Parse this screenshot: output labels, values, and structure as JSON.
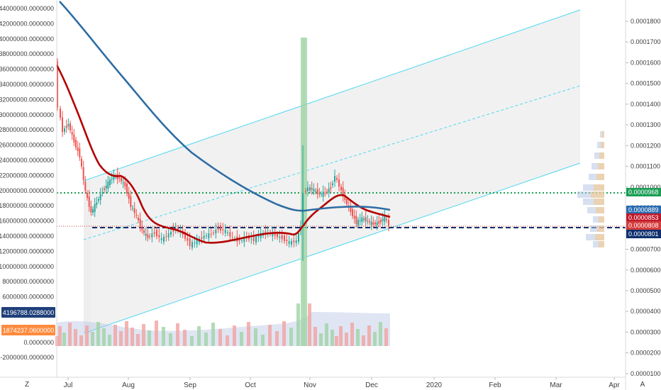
{
  "chart_data": {
    "type": "candlestick",
    "x_axis": {
      "ticks": [
        "Jul",
        "Aug",
        "Sep",
        "Oct",
        "Nov",
        "Dec",
        "2020",
        "Feb",
        "Mar",
        "Apr"
      ]
    },
    "left_axis": {
      "range": [
        -3000000,
        45000000
      ],
      "ticks": [
        "44000000.0000000",
        "42000000.0000000",
        "40000000.0000000",
        "38000000.0000000",
        "36000000.0000000",
        "34000000.0000000",
        "32000000.0000000",
        "30000000.0000000",
        "28000000.0000000",
        "26000000.0000000",
        "24000000.0000000",
        "22000000.0000000",
        "20000000.0000000",
        "18000000.0000000",
        "16000000.0000000",
        "14000000.0000000",
        "12000000.0000000",
        "10000000.0000000",
        "8000000.0000000",
        "6000000.0000000",
        "4000000.0000000",
        "2000000.0000000",
        "0.0000000",
        "-2000000.0000000"
      ],
      "markers": [
        {
          "label": "4196788.0288000",
          "color": "#1e3f7a"
        },
        {
          "label": "1874237.0600000",
          "color": "#ff8a3d"
        }
      ]
    },
    "right_axis": {
      "scale": "log",
      "range": [
        0.0001,
        0.000185
      ],
      "ticks": [
        "0.0001800",
        "0.0001700",
        "0.0001600",
        "0.0001500",
        "0.0001400",
        "0.0001300",
        "0.0001200",
        "0.0001100",
        "0.0001000",
        "0.0000900",
        "0.0000800",
        "0.0000700",
        "0.0000600",
        "0.0000500",
        "0.0000400",
        "0.0000300",
        "0.0000200",
        "0.0000100"
      ],
      "markers": [
        {
          "label": "0.0000968",
          "color": "#1b9e56"
        },
        {
          "label": "0.0000889",
          "color": "#2a6cb0"
        },
        {
          "label": "0.0000853",
          "color": "#c0182a"
        },
        {
          "label": "0.0000808",
          "color": "#d43c3c"
        },
        {
          "label": "0.0000801",
          "color": "#0f2f6e"
        }
      ]
    },
    "series": [
      {
        "type": "candles",
        "up_color": "#26a69a",
        "down_color": "#ef5350"
      },
      {
        "type": "line",
        "color": "#b40000"
      },
      {
        "type": "line",
        "color": "#2e6da4"
      },
      {
        "type": "histogram",
        "up_color": "#9fd3a5",
        "down_color": "#f1a2a0"
      }
    ],
    "channel": {
      "line_color": "#4dd9f0",
      "fill": "#eeeeee"
    },
    "horizontal_lines": [
      {
        "label": "0.0000968",
        "color": "#1b9e56",
        "style": "dotted"
      },
      {
        "label": "0.0000801",
        "color": "#0f2f6e",
        "style": "dashed"
      }
    ]
  },
  "footer": {
    "left_icon": "Z",
    "right_icon": "A"
  }
}
